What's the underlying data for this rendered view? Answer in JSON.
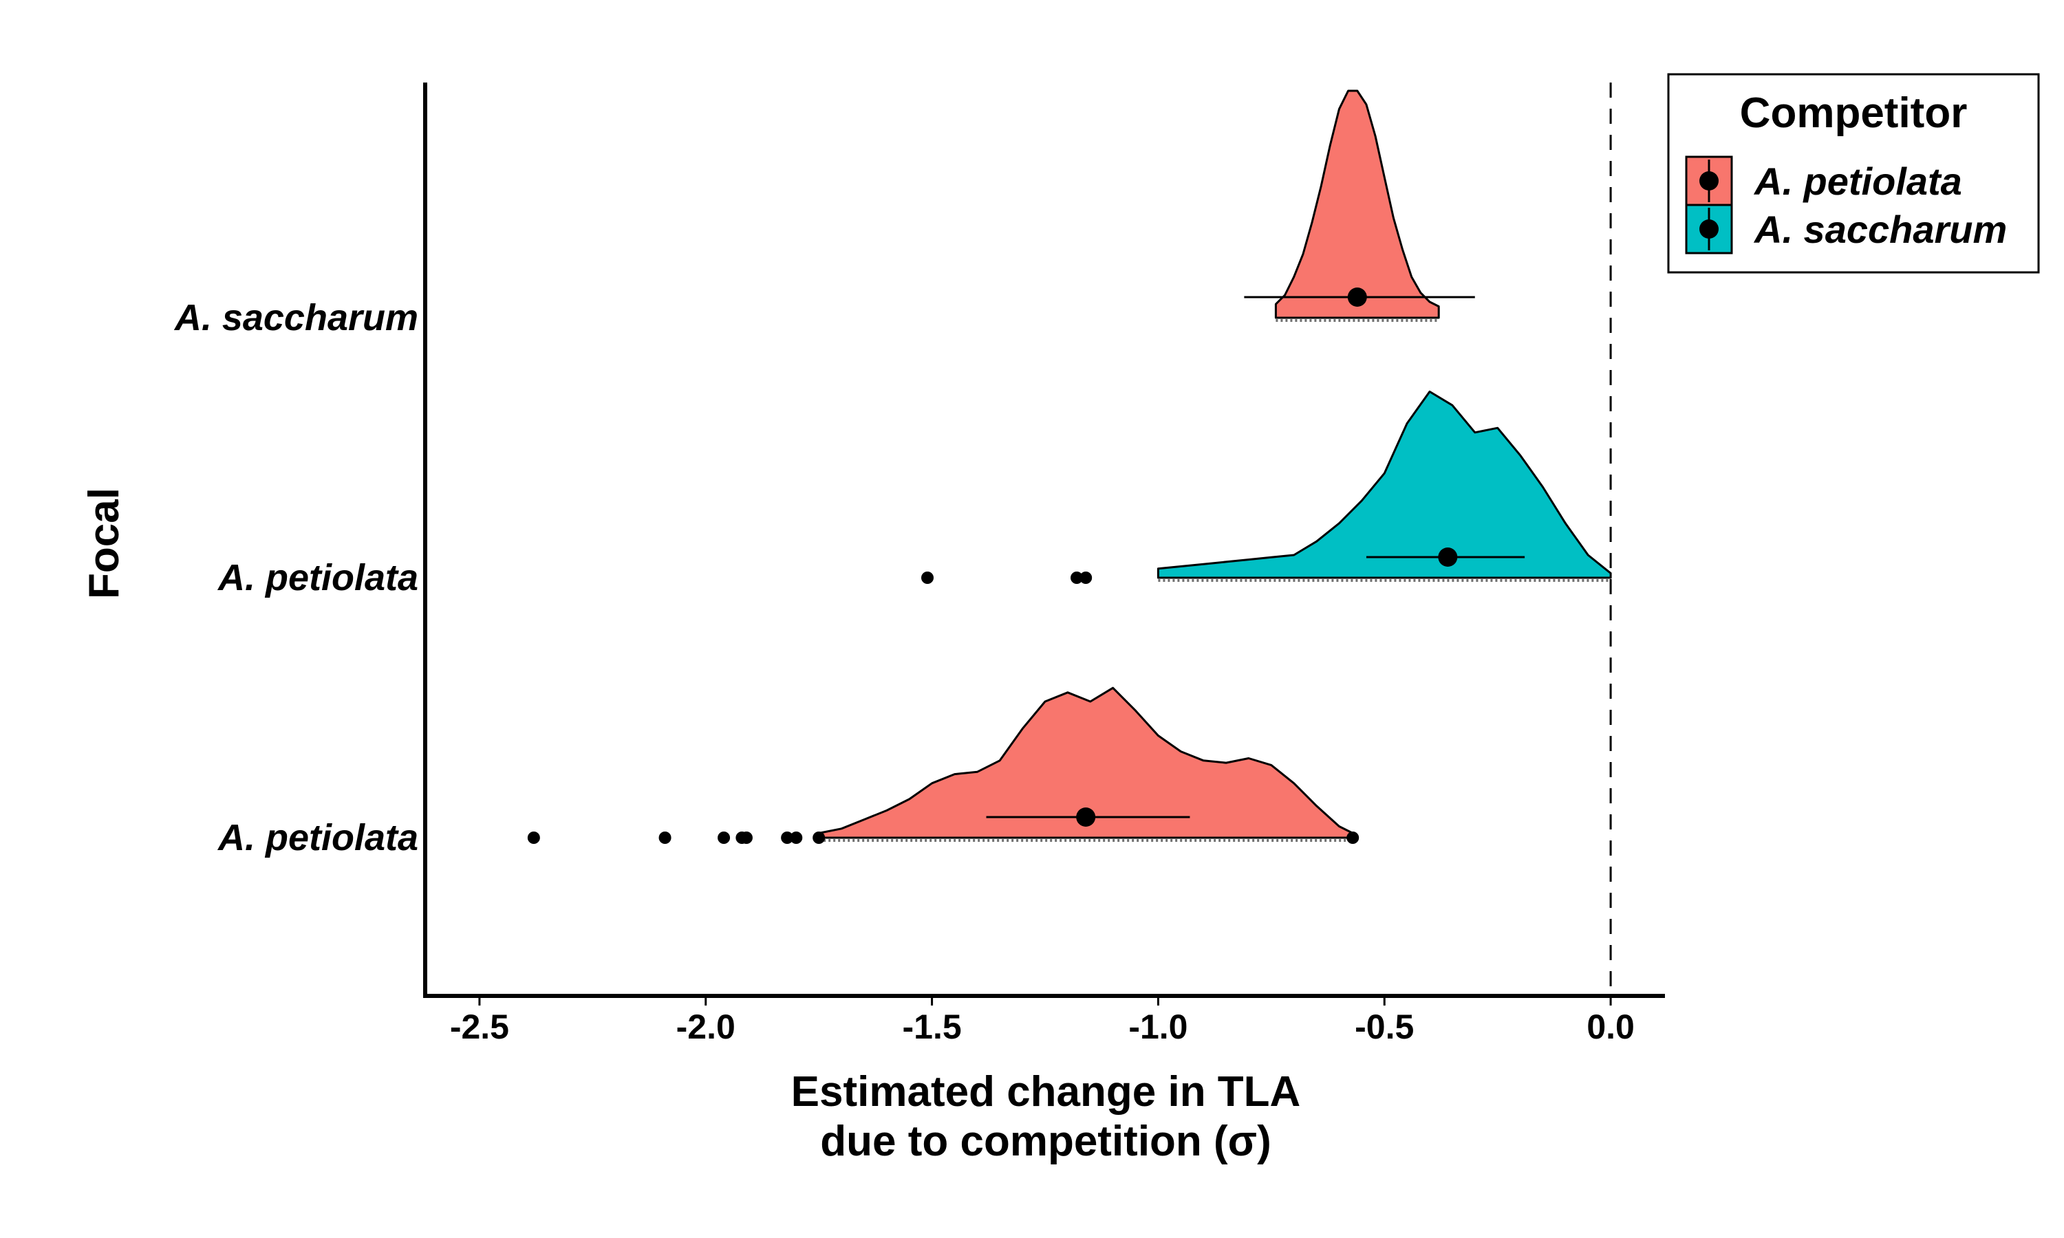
{
  "chart_data": {
    "type": "raincloud",
    "title": "",
    "xlabel_lines": [
      "Estimated change in TLA",
      "due to competition (σ)"
    ],
    "ylabel": "Focal",
    "xlim": [
      -2.62,
      0.12
    ],
    "xticks": [
      -2.5,
      -2.0,
      -1.5,
      -1.0,
      -0.5,
      0.0
    ],
    "xtick_labels": [
      "-2.5",
      "-2.0",
      "-1.5",
      "-1.0",
      "-0.5",
      "0.0"
    ],
    "reference_line": {
      "x": 0.0,
      "style": "dashed"
    },
    "grid": false,
    "legend": {
      "title": "Competitor",
      "position": "top-right",
      "entries": [
        {
          "label": "A. petiolata",
          "color": "#F8766D"
        },
        {
          "label": "A. saccharum",
          "color": "#00BFC4"
        }
      ]
    },
    "rows": [
      {
        "focal": "A. saccharum",
        "competitor": "A. petiolata",
        "color": "#F8766D",
        "density_x": [
          -0.74,
          -0.72,
          -0.7,
          -0.68,
          -0.66,
          -0.64,
          -0.62,
          -0.6,
          -0.58,
          -0.56,
          -0.54,
          -0.52,
          -0.5,
          -0.48,
          -0.46,
          -0.44,
          -0.42,
          -0.4,
          -0.38
        ],
        "density_y": [
          0.06,
          0.1,
          0.18,
          0.28,
          0.42,
          0.58,
          0.76,
          0.92,
          1.0,
          1.0,
          0.94,
          0.8,
          0.62,
          0.44,
          0.3,
          0.18,
          0.11,
          0.07,
          0.05
        ],
        "point_estimate": -0.56,
        "interval": [
          -0.81,
          -0.3
        ],
        "outliers": []
      },
      {
        "focal": "A. petiolata",
        "competitor": "A. saccharum",
        "color": "#00BFC4",
        "density_x": [
          -1.0,
          -0.95,
          -0.9,
          -0.85,
          -0.8,
          -0.75,
          -0.7,
          -0.65,
          -0.6,
          -0.55,
          -0.5,
          -0.45,
          -0.4,
          -0.35,
          -0.3,
          -0.25,
          -0.2,
          -0.15,
          -0.1,
          -0.05,
          0.0
        ],
        "density_y": [
          0.04,
          0.05,
          0.06,
          0.07,
          0.08,
          0.09,
          0.1,
          0.16,
          0.24,
          0.34,
          0.46,
          0.68,
          0.82,
          0.76,
          0.64,
          0.66,
          0.54,
          0.4,
          0.24,
          0.1,
          0.02
        ],
        "point_estimate": -0.36,
        "interval": [
          -0.54,
          -0.19
        ],
        "outliers": [
          -1.51,
          -1.18,
          -1.16
        ]
      },
      {
        "focal": "A. petiolata",
        "competitor": "A. petiolata",
        "color": "#F8766D",
        "density_x": [
          -1.75,
          -1.7,
          -1.65,
          -1.6,
          -1.55,
          -1.5,
          -1.45,
          -1.4,
          -1.35,
          -1.3,
          -1.25,
          -1.2,
          -1.15,
          -1.1,
          -1.05,
          -1.0,
          -0.95,
          -0.9,
          -0.85,
          -0.8,
          -0.75,
          -0.7,
          -0.65,
          -0.6,
          -0.57
        ],
        "density_y": [
          0.02,
          0.04,
          0.08,
          0.12,
          0.17,
          0.24,
          0.28,
          0.29,
          0.34,
          0.48,
          0.6,
          0.64,
          0.6,
          0.66,
          0.56,
          0.45,
          0.38,
          0.34,
          0.33,
          0.35,
          0.32,
          0.24,
          0.14,
          0.05,
          0.02
        ],
        "point_estimate": -1.16,
        "interval": [
          -1.38,
          -0.93
        ],
        "outliers": [
          -2.38,
          -2.09,
          -1.96,
          -1.92,
          -1.91,
          -1.82,
          -1.8,
          -1.75,
          -0.57
        ]
      }
    ]
  }
}
